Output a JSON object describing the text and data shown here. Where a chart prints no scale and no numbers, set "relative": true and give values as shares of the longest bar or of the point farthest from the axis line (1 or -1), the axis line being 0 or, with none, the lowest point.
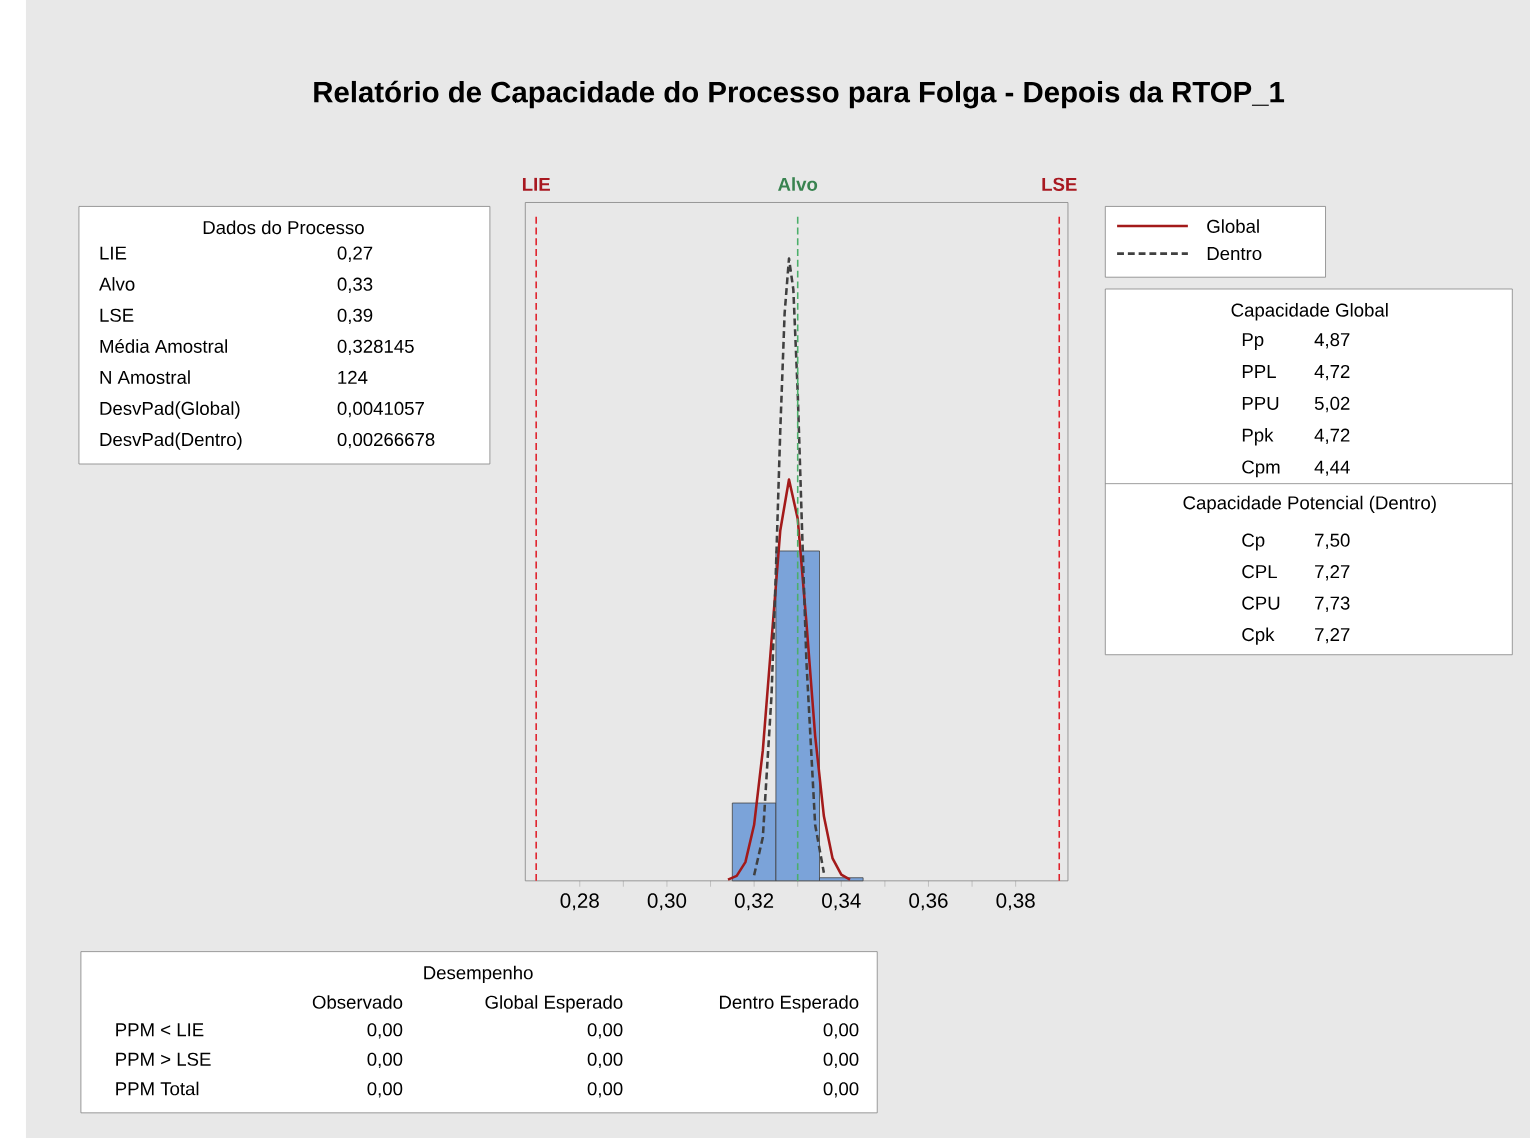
{
  "chart_data": {
    "type": "histogram",
    "title": "Relatório de Capacidade do Processo para Folga - Depois da RTOP_1",
    "relative": true,
    "bins": [
      0.315,
      0.325,
      0.335,
      0.345
    ],
    "values": [
      0.125,
      0.53,
      0.005
    ],
    "color": "#7ba3d9",
    "series": [
      {
        "name": "Global",
        "type": "line",
        "color": "#a31a1a",
        "line_style": "solid",
        "x": [
          0.314,
          0.316,
          0.318,
          0.32,
          0.322,
          0.324,
          0.326,
          0.328,
          0.33,
          0.332,
          0.334,
          0.336,
          0.338,
          0.34,
          0.342
        ],
        "values": [
          0.002,
          0.008,
          0.03,
          0.09,
          0.21,
          0.387,
          0.563,
          0.645,
          0.582,
          0.415,
          0.233,
          0.104,
          0.036,
          0.01,
          0.002
        ]
      },
      {
        "name": "Dentro",
        "type": "line",
        "color": "#404040",
        "line_style": "dashed",
        "x": [
          0.32,
          0.322,
          0.324,
          0.325,
          0.326,
          0.327,
          0.328,
          0.329,
          0.33,
          0.331,
          0.332,
          0.334,
          0.336
        ],
        "values": [
          0.009,
          0.07,
          0.299,
          0.499,
          0.724,
          0.912,
          1.0,
          0.95,
          0.785,
          0.564,
          0.352,
          0.09,
          0.013
        ]
      }
    ],
    "xlim": [
      0.2675,
      0.392
    ],
    "xticks": [
      {
        "value": 0.28,
        "label": "0,28"
      },
      {
        "value": 0.3,
        "label": "0,30"
      },
      {
        "value": 0.32,
        "label": "0,32"
      },
      {
        "value": 0.34,
        "label": "0,34"
      },
      {
        "value": 0.36,
        "label": "0,36"
      },
      {
        "value": 0.38,
        "label": "0,38"
      }
    ],
    "ref_lines": [
      {
        "axis": "x",
        "value": 0.27,
        "label": "LIE",
        "color": "#e0202a",
        "line_style": "dashed"
      },
      {
        "axis": "x",
        "value": 0.33,
        "label": "Alvo",
        "color": "#4caf6a",
        "line_style": "dashed"
      },
      {
        "axis": "x",
        "value": 0.39,
        "label": "LSE",
        "color": "#e0202a",
        "line_style": "dashed"
      }
    ],
    "legend": "top right",
    "annotations": [
      "Dados do Processo",
      "LIE",
      "0,27",
      "Alvo",
      "0,33",
      "LSE",
      "0,39",
      "Média Amostral",
      "0,328145",
      "N Amostral",
      "124",
      "DesvPad(Global)",
      "0,0041057",
      "DesvPad(Dentro)",
      "0,00266678",
      "Capacidade Global",
      "Pp",
      "4,87",
      "PPL",
      "4,72",
      "PPU",
      "5,02",
      "Ppk",
      "4,72",
      "Cpm",
      "4,44",
      "Capacidade Potencial (Dentro)",
      "Cp",
      "7,50",
      "CPL",
      "7,27",
      "CPU",
      "7,73",
      "Cpk",
      "7,27",
      "Desempenho",
      "Observado",
      "Global Esperado",
      "Dentro Esperado",
      "PPM < LIE",
      "0,00",
      "0,00",
      "0,00",
      "PPM > LSE",
      "0,00",
      "0,00",
      "0,00",
      "PPM Total",
      "0,00",
      "0,00",
      "0,00"
    ]
  }
}
